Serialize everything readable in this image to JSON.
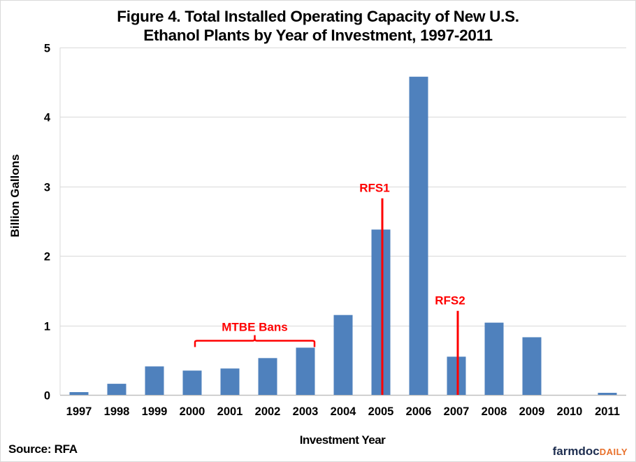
{
  "chart_data": {
    "type": "bar",
    "title_line1": "Figure 4. Total Installed Operating Capacity of New U.S.",
    "title_line2": "Ethanol Plants by Year of Investment, 1997-2011",
    "xlabel": "Investment Year",
    "ylabel": "Billion Gallons",
    "ylim": [
      0,
      5
    ],
    "yticks": [
      0,
      1,
      2,
      3,
      4,
      5
    ],
    "grid": true,
    "categories": [
      "1997",
      "1998",
      "1999",
      "2000",
      "2001",
      "2002",
      "2003",
      "2004",
      "2005",
      "2006",
      "2007",
      "2008",
      "2009",
      "2010",
      "2011"
    ],
    "values": [
      0.04,
      0.16,
      0.41,
      0.35,
      0.38,
      0.53,
      0.68,
      1.15,
      2.38,
      4.58,
      0.55,
      1.04,
      0.83,
      0.0,
      0.03
    ],
    "bar_color": "#4f81bd",
    "annotation_color": "#ff0000",
    "annotations": [
      {
        "type": "bracket",
        "label": "MTBE Bans",
        "from": "2000",
        "to": "2003",
        "y": 0.8
      },
      {
        "type": "vline",
        "label": "RFS1",
        "at": "2005",
        "top": 2.83
      },
      {
        "type": "vline",
        "label": "RFS2",
        "at": "2007",
        "top": 1.21
      }
    ]
  },
  "footer": {
    "source": "Source: RFA",
    "logo_main": "farmdoc",
    "logo_accent": "DAILY"
  }
}
